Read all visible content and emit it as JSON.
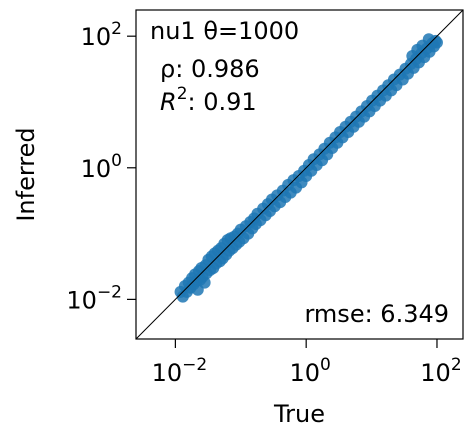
{
  "chart_data": {
    "type": "scatter",
    "title": "",
    "xlabel": "True",
    "ylabel": "Inferred",
    "xscale": "log",
    "yscale": "log",
    "xlim": [
      0.0025,
      250
    ],
    "ylim": [
      0.0025,
      250
    ],
    "x_ticks": [
      0.01,
      1,
      100
    ],
    "y_ticks": [
      0.01,
      1,
      100
    ],
    "tick_labels": [
      "10^{-2}",
      "10^{0}",
      "10^{2}"
    ],
    "grid": false,
    "reference_line": "y = x",
    "point_color": "#1f77b4",
    "annotations": {
      "name_prefix": "nu1 θ=",
      "theta": "1000",
      "rho_label": "ρ: ",
      "rho": "0.986",
      "r2_label": ": ",
      "r2": "0.91",
      "rmse_label": "rmse: ",
      "rmse": "6.349"
    },
    "series": [
      {
        "points": [
          [
            0.012,
            0.013
          ],
          [
            0.013,
            0.011
          ],
          [
            0.014,
            0.016
          ],
          [
            0.015,
            0.013
          ],
          [
            0.016,
            0.018
          ],
          [
            0.017,
            0.015
          ],
          [
            0.018,
            0.021
          ],
          [
            0.019,
            0.017
          ],
          [
            0.02,
            0.024
          ],
          [
            0.021,
            0.019
          ],
          [
            0.022,
            0.014
          ],
          [
            0.023,
            0.027
          ],
          [
            0.024,
            0.02
          ],
          [
            0.025,
            0.03
          ],
          [
            0.026,
            0.022
          ],
          [
            0.028,
            0.018
          ],
          [
            0.029,
            0.033
          ],
          [
            0.03,
            0.025
          ],
          [
            0.032,
            0.04
          ],
          [
            0.034,
            0.028
          ],
          [
            0.036,
            0.045
          ],
          [
            0.038,
            0.03
          ],
          [
            0.04,
            0.05
          ],
          [
            0.042,
            0.035
          ],
          [
            0.045,
            0.055
          ],
          [
            0.048,
            0.038
          ],
          [
            0.05,
            0.06
          ],
          [
            0.053,
            0.042
          ],
          [
            0.056,
            0.07
          ],
          [
            0.06,
            0.048
          ],
          [
            0.063,
            0.08
          ],
          [
            0.067,
            0.055
          ],
          [
            0.07,
            0.085
          ],
          [
            0.075,
            0.06
          ],
          [
            0.08,
            0.09
          ],
          [
            0.085,
            0.068
          ],
          [
            0.09,
            0.1
          ],
          [
            0.095,
            0.075
          ],
          [
            0.1,
            0.115
          ],
          [
            0.11,
            0.085
          ],
          [
            0.12,
            0.13
          ],
          [
            0.13,
            0.1
          ],
          [
            0.14,
            0.15
          ],
          [
            0.15,
            0.12
          ],
          [
            0.16,
            0.17
          ],
          [
            0.17,
            0.14
          ],
          [
            0.18,
            0.2
          ],
          [
            0.2,
            0.16
          ],
          [
            0.22,
            0.24
          ],
          [
            0.24,
            0.19
          ],
          [
            0.26,
            0.28
          ],
          [
            0.28,
            0.22
          ],
          [
            0.3,
            0.33
          ],
          [
            0.33,
            0.26
          ],
          [
            0.36,
            0.38
          ],
          [
            0.4,
            0.3
          ],
          [
            0.44,
            0.45
          ],
          [
            0.48,
            0.36
          ],
          [
            0.53,
            0.55
          ],
          [
            0.58,
            0.42
          ],
          [
            0.64,
            0.65
          ],
          [
            0.7,
            0.5
          ],
          [
            0.77,
            0.75
          ],
          [
            0.85,
            0.6
          ],
          [
            0.93,
            0.9
          ],
          [
            1.0,
            0.75
          ],
          [
            1.1,
            1.1
          ],
          [
            1.2,
            0.9
          ],
          [
            1.3,
            1.35
          ],
          [
            1.45,
            1.1
          ],
          [
            1.6,
            1.6
          ],
          [
            1.75,
            1.3
          ],
          [
            1.9,
            1.95
          ],
          [
            2.1,
            1.6
          ],
          [
            2.3,
            2.4
          ],
          [
            2.5,
            2.0
          ],
          [
            2.8,
            2.9
          ],
          [
            3.0,
            2.4
          ],
          [
            3.3,
            3.5
          ],
          [
            3.6,
            2.9
          ],
          [
            4.0,
            4.2
          ],
          [
            4.4,
            3.5
          ],
          [
            4.8,
            5.0
          ],
          [
            5.3,
            4.2
          ],
          [
            5.8,
            6.0
          ],
          [
            6.4,
            5.0
          ],
          [
            7.0,
            7.2
          ],
          [
            7.7,
            6.0
          ],
          [
            8.5,
            8.7
          ],
          [
            9.3,
            7.2
          ],
          [
            10.2,
            10.5
          ],
          [
            11.2,
            8.7
          ],
          [
            12.3,
            12.5
          ],
          [
            13.5,
            10.5
          ],
          [
            15.0,
            15.0
          ],
          [
            16.5,
            12.5
          ],
          [
            18,
            18
          ],
          [
            20,
            15
          ],
          [
            22,
            22
          ],
          [
            24,
            18
          ],
          [
            27,
            26
          ],
          [
            30,
            22
          ],
          [
            33,
            32
          ],
          [
            36,
            27
          ],
          [
            40,
            38
          ],
          [
            44,
            33
          ],
          [
            48,
            45
          ],
          [
            53,
            40
          ],
          [
            58,
            55
          ],
          [
            64,
            48
          ],
          [
            70,
            65
          ],
          [
            77,
            58
          ],
          [
            85,
            78
          ],
          [
            90,
            70
          ],
          [
            95,
            85
          ],
          [
            100,
            80
          ],
          [
            75,
            90
          ],
          [
            60,
            72
          ],
          [
            50,
            62
          ],
          [
            42,
            50
          ]
        ]
      }
    ]
  }
}
